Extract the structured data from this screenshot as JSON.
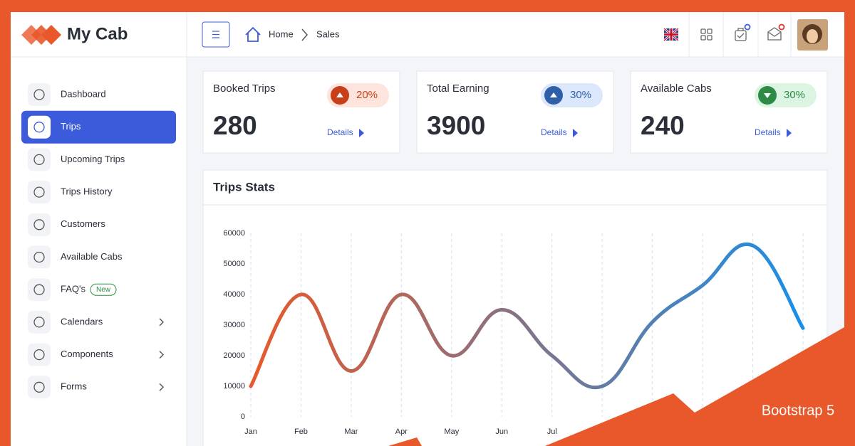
{
  "brand": "My Cab",
  "header": {
    "breadcrumb": [
      "Home",
      "Sales"
    ]
  },
  "sidebar": {
    "items": [
      {
        "label": "Dashboard"
      },
      {
        "label": "Trips"
      },
      {
        "label": "Upcoming Trips"
      },
      {
        "label": "Trips History"
      },
      {
        "label": "Customers"
      },
      {
        "label": "Available Cabs"
      },
      {
        "label": "FAQ's",
        "badge": "New"
      },
      {
        "label": "Calendars"
      },
      {
        "label": "Components"
      },
      {
        "label": "Forms"
      }
    ]
  },
  "cards": [
    {
      "title": "Booked Trips",
      "value": 280,
      "change": "20%",
      "link": "Details"
    },
    {
      "title": "Total Earning",
      "value": 3900,
      "change": "30%",
      "link": "Details"
    },
    {
      "title": "Available Cabs",
      "value": 240,
      "change": "30%",
      "link": "Details"
    }
  ],
  "chart_data": {
    "type": "line",
    "title": "Trips Stats",
    "categories": [
      "Jan",
      "Feb",
      "Mar",
      "Apr",
      "May",
      "Jun",
      "Jul",
      null,
      null,
      null,
      null,
      null
    ],
    "values": [
      10000,
      40000,
      15000,
      40000,
      20000,
      35000,
      20000,
      10000,
      31000,
      43000,
      56000,
      29000
    ],
    "colors": [
      "#e8582a",
      "#1a8fe8"
    ],
    "ylim": [
      0,
      60000
    ],
    "yticks": [
      0,
      10000,
      20000,
      30000,
      40000,
      50000,
      60000
    ],
    "grid": true
  },
  "corner_badge": "Bootstrap 5"
}
